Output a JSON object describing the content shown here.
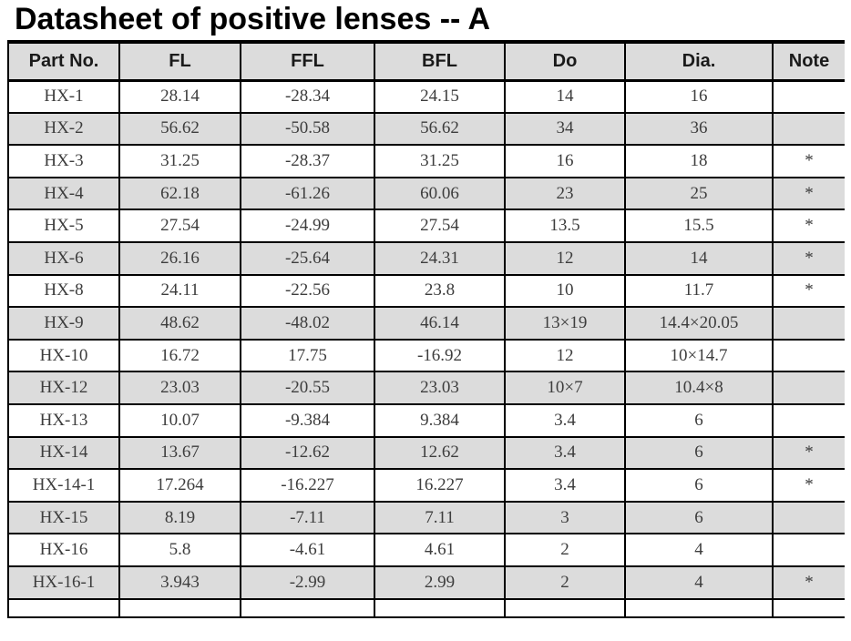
{
  "page_title": "Datasheet of positive lenses -- A",
  "table": {
    "columns": [
      "Part No.",
      "FL",
      "FFL",
      "BFL",
      "Do",
      "Dia.",
      "Note"
    ],
    "rows": [
      [
        "HX-1",
        "28.14",
        "-28.34",
        "24.15",
        "14",
        "16",
        ""
      ],
      [
        "HX-2",
        "56.62",
        "-50.58",
        "56.62",
        "34",
        "36",
        ""
      ],
      [
        "HX-3",
        "31.25",
        "-28.37",
        "31.25",
        "16",
        "18",
        "*"
      ],
      [
        "HX-4",
        "62.18",
        "-61.26",
        "60.06",
        "23",
        "25",
        "*"
      ],
      [
        "HX-5",
        "27.54",
        "-24.99",
        "27.54",
        "13.5",
        "15.5",
        "*"
      ],
      [
        "HX-6",
        "26.16",
        "-25.64",
        "24.31",
        "12",
        "14",
        "*"
      ],
      [
        "HX-8",
        "24.11",
        "-22.56",
        "23.8",
        "10",
        "11.7",
        "*"
      ],
      [
        "HX-9",
        "48.62",
        "-48.02",
        "46.14",
        "13×19",
        "14.4×20.05",
        ""
      ],
      [
        "HX-10",
        "16.72",
        "17.75",
        "-16.92",
        "12",
        "10×14.7",
        ""
      ],
      [
        "HX-12",
        "23.03",
        "-20.55",
        "23.03",
        "10×7",
        "10.4×8",
        ""
      ],
      [
        "HX-13",
        "10.07",
        "-9.384",
        "9.384",
        "3.4",
        "6",
        ""
      ],
      [
        "HX-14",
        "13.67",
        "-12.62",
        "12.62",
        "3.4",
        "6",
        "*"
      ],
      [
        "HX-14-1",
        "17.264",
        "-16.227",
        "16.227",
        "3.4",
        "6",
        "*"
      ],
      [
        "HX-15",
        "8.19",
        "-7.11",
        "7.11",
        "3",
        "6",
        ""
      ],
      [
        "HX-16",
        "5.8",
        "-4.61",
        "4.61",
        "2",
        "4",
        ""
      ],
      [
        "HX-16-1",
        "3.943",
        "-2.99",
        "2.99",
        "2",
        "4",
        "*"
      ]
    ],
    "colors": {
      "header_bg": "#dcdcdc",
      "row_alt_bg": "#dcdcdc",
      "border": "#000000",
      "body_text": "#3d3d3d",
      "header_text": "#1a1a1a"
    }
  }
}
